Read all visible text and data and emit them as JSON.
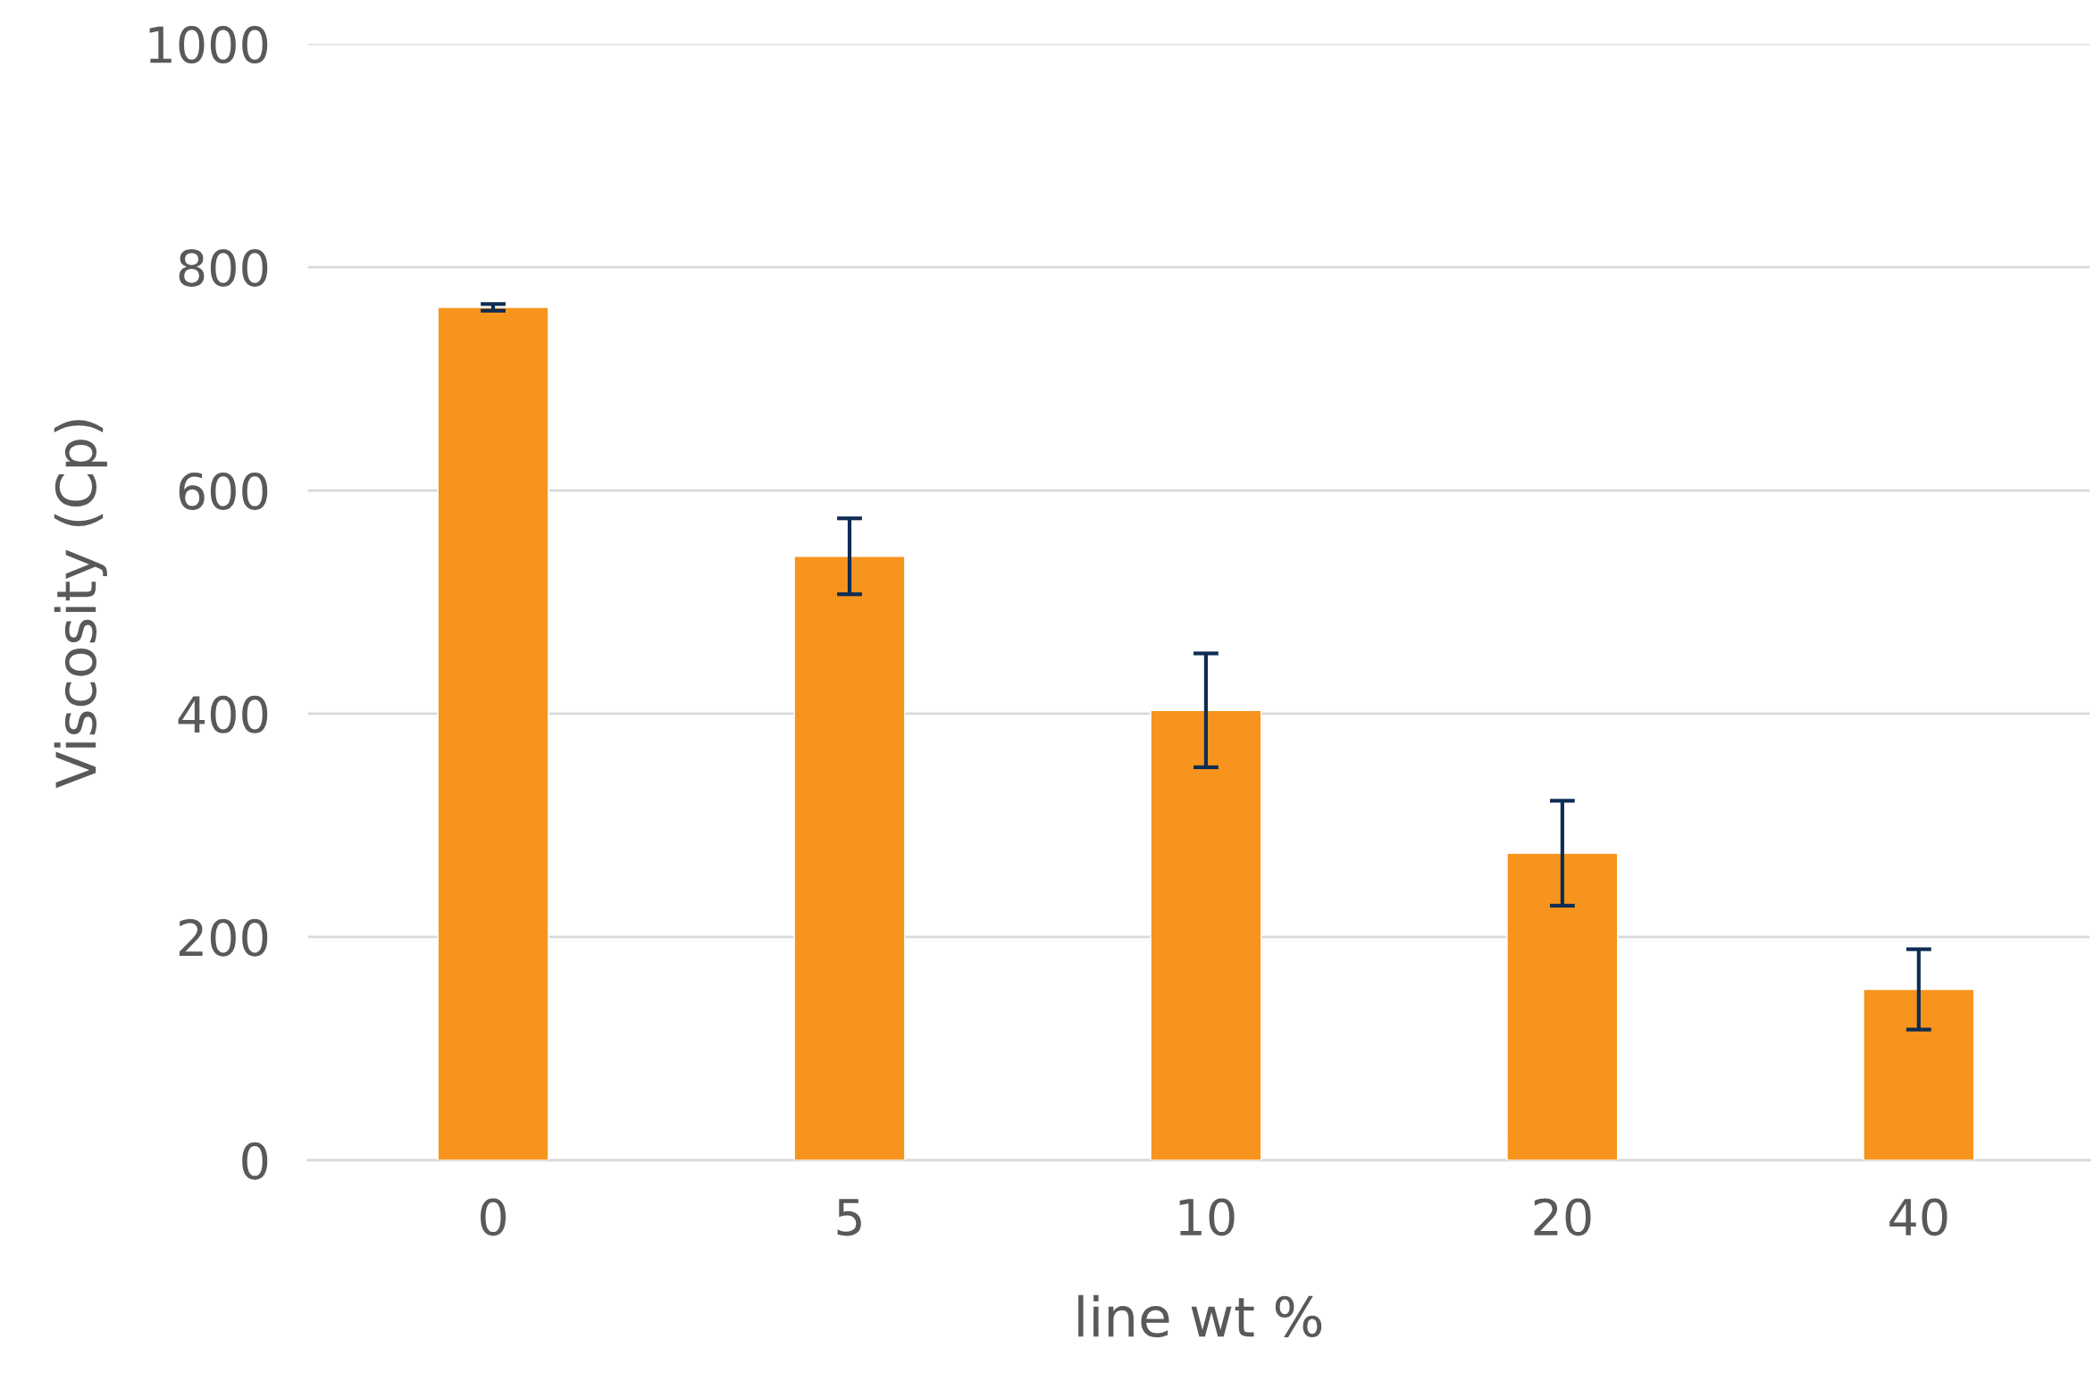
{
  "chart_data": {
    "type": "bar",
    "xlabel": "line wt %",
    "ylabel": "Viscosity (Cp)",
    "categories": [
      "0",
      "5",
      "10",
      "20",
      "40"
    ],
    "values": [
      764,
      541,
      403,
      275,
      153
    ],
    "errors": [
      3,
      34,
      51,
      47,
      36
    ],
    "color": "#f7941d",
    "ylim": [
      0,
      1000
    ],
    "yticks": [
      0,
      200,
      400,
      600,
      800,
      1000
    ],
    "grid": "y"
  }
}
